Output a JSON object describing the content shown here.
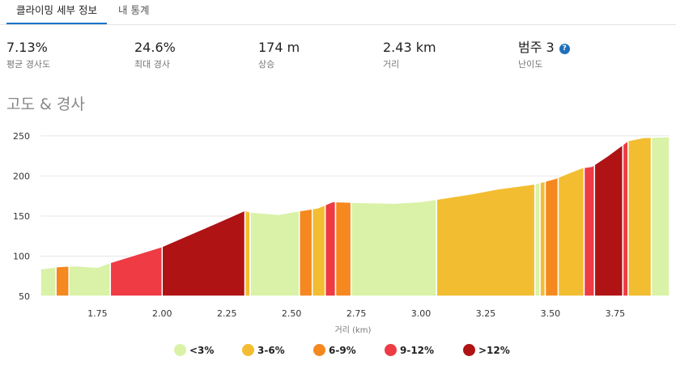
{
  "tabs": [
    {
      "label": "클라이밍 세부 정보",
      "active": true
    },
    {
      "label": "내 통계",
      "active": false
    }
  ],
  "stats": [
    {
      "value": "7.13%",
      "label": "평균 경사도"
    },
    {
      "value": "24.6%",
      "label": "최대 경사"
    },
    {
      "value": "174 m",
      "label": "상승"
    },
    {
      "value": "2.43 km",
      "label": "거리"
    },
    {
      "value": "범주 3",
      "label": "난이도"
    }
  ],
  "help_icon": "question-circle-icon",
  "section_title": "고도 & 경사",
  "colors": {
    "c1": "#d9f2a7",
    "c2": "#f2bd30",
    "c3": "#f5881f",
    "c4": "#ee3b44",
    "c5": "#af1314"
  },
  "legend": [
    {
      "label": "<3%",
      "color": "#d9f2a7"
    },
    {
      "label": "3-6%",
      "color": "#f2bd30"
    },
    {
      "label": "6-9%",
      "color": "#f5881f"
    },
    {
      "label": "9-12%",
      "color": "#ee3b44"
    },
    {
      "label": ">12%",
      "color": "#af1314"
    }
  ],
  "chart_data": {
    "type": "area",
    "xlabel": "거리 (km)",
    "ylabel": "",
    "xlim": [
      1.53,
      3.96
    ],
    "ylim": [
      50,
      260
    ],
    "x_ticks": [
      "1.75",
      "2.00",
      "2.25",
      "2.50",
      "2.75",
      "3.00",
      "3.25",
      "3.50",
      "3.75"
    ],
    "y_ticks": [
      "50",
      "100",
      "150",
      "200",
      "250"
    ],
    "grid": true,
    "profile": [
      [
        1.53,
        84
      ],
      [
        1.6,
        87
      ],
      [
        1.66,
        88
      ],
      [
        1.75,
        86
      ],
      [
        1.8,
        92
      ],
      [
        1.9,
        102
      ],
      [
        2.0,
        112
      ],
      [
        2.1,
        126
      ],
      [
        2.2,
        140
      ],
      [
        2.32,
        157
      ],
      [
        2.34,
        155
      ],
      [
        2.45,
        152
      ],
      [
        2.5,
        155
      ],
      [
        2.6,
        160
      ],
      [
        2.66,
        168
      ],
      [
        2.75,
        167
      ],
      [
        2.9,
        166
      ],
      [
        3.0,
        168
      ],
      [
        3.06,
        171
      ],
      [
        3.2,
        178
      ],
      [
        3.3,
        184
      ],
      [
        3.44,
        190
      ],
      [
        3.52,
        197
      ],
      [
        3.58,
        205
      ],
      [
        3.62,
        210
      ],
      [
        3.66,
        212
      ],
      [
        3.72,
        225
      ],
      [
        3.8,
        244
      ],
      [
        3.86,
        248
      ],
      [
        3.96,
        249
      ]
    ],
    "segments": [
      {
        "from": 1.53,
        "to": 1.59,
        "grade": "<3%"
      },
      {
        "from": 1.59,
        "to": 1.64,
        "grade": "6-9%"
      },
      {
        "from": 1.64,
        "to": 1.8,
        "grade": "<3%"
      },
      {
        "from": 1.8,
        "to": 2.0,
        "grade": "9-12%"
      },
      {
        "from": 2.0,
        "to": 2.32,
        "grade": ">12%"
      },
      {
        "from": 2.32,
        "to": 2.34,
        "grade": "3-6%"
      },
      {
        "from": 2.34,
        "to": 2.53,
        "grade": "<3%"
      },
      {
        "from": 2.53,
        "to": 2.58,
        "grade": "6-9%"
      },
      {
        "from": 2.58,
        "to": 2.63,
        "grade": "3-6%"
      },
      {
        "from": 2.63,
        "to": 2.67,
        "grade": "9-12%"
      },
      {
        "from": 2.67,
        "to": 2.73,
        "grade": "6-9%"
      },
      {
        "from": 2.73,
        "to": 3.06,
        "grade": "<3%"
      },
      {
        "from": 3.06,
        "to": 3.44,
        "grade": "3-6%"
      },
      {
        "from": 3.44,
        "to": 3.46,
        "grade": "<3%"
      },
      {
        "from": 3.46,
        "to": 3.48,
        "grade": "3-6%"
      },
      {
        "from": 3.48,
        "to": 3.53,
        "grade": "6-9%"
      },
      {
        "from": 3.53,
        "to": 3.63,
        "grade": "3-6%"
      },
      {
        "from": 3.63,
        "to": 3.67,
        "grade": "9-12%"
      },
      {
        "from": 3.67,
        "to": 3.78,
        "grade": ">12%"
      },
      {
        "from": 3.78,
        "to": 3.8,
        "grade": "9-12%"
      },
      {
        "from": 3.8,
        "to": 3.89,
        "grade": "3-6%"
      },
      {
        "from": 3.89,
        "to": 3.96,
        "grade": "<3%"
      }
    ]
  }
}
